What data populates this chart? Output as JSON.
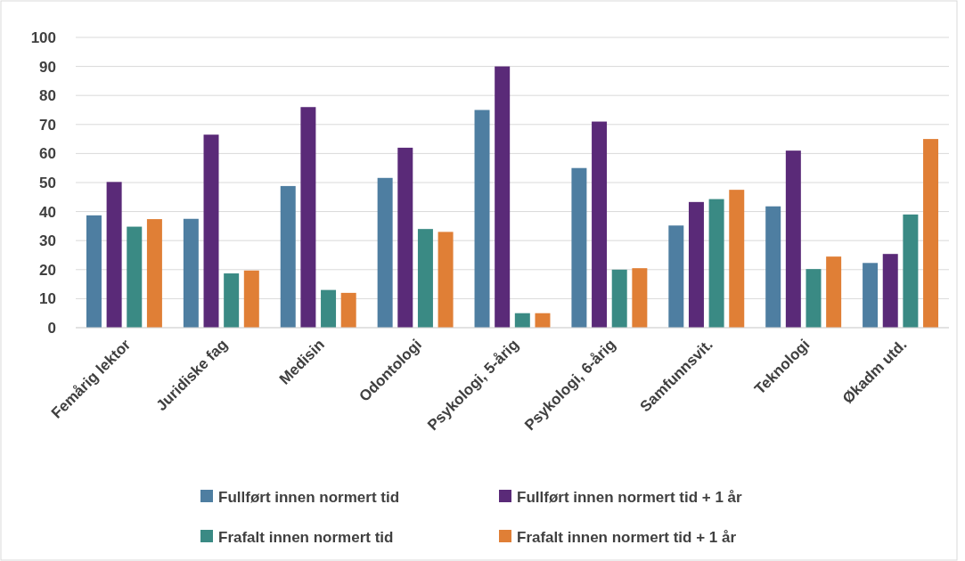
{
  "chart_data": {
    "type": "bar",
    "categories": [
      "Femårig lektor",
      "Juridiske fag",
      "Medisin",
      "Odontologi",
      "Psykologi, 5-årig",
      "Psykologi, 6-årig",
      "Samfunnsvit.",
      "Teknologi",
      "Økadm utd."
    ],
    "series": [
      {
        "name": "Fullført innen normert tid",
        "color": "#4e7ea1",
        "values": [
          38.7,
          37.5,
          48.8,
          51.6,
          75,
          55,
          35.2,
          41.8,
          22.3
        ]
      },
      {
        "name": "Fullført innen normert tid + 1 år",
        "color": "#5a2a78",
        "values": [
          50.2,
          66.5,
          76,
          62,
          90,
          71,
          43.3,
          61,
          25.4
        ]
      },
      {
        "name": "Frafalt innen normert tid",
        "color": "#3a8a84",
        "values": [
          34.8,
          18.7,
          13,
          34,
          5,
          20,
          44.3,
          20.2,
          39
        ]
      },
      {
        "name": "Frafalt innen normert tid + 1 år",
        "color": "#e07f36",
        "values": [
          37.4,
          19.7,
          12,
          33,
          5,
          20.5,
          47.5,
          24.5,
          65
        ]
      }
    ],
    "ylim": [
      0,
      100
    ],
    "yticks": [
      0,
      10,
      20,
      30,
      40,
      50,
      60,
      70,
      80,
      90,
      100
    ],
    "grid": "y",
    "legend": "bottom"
  }
}
